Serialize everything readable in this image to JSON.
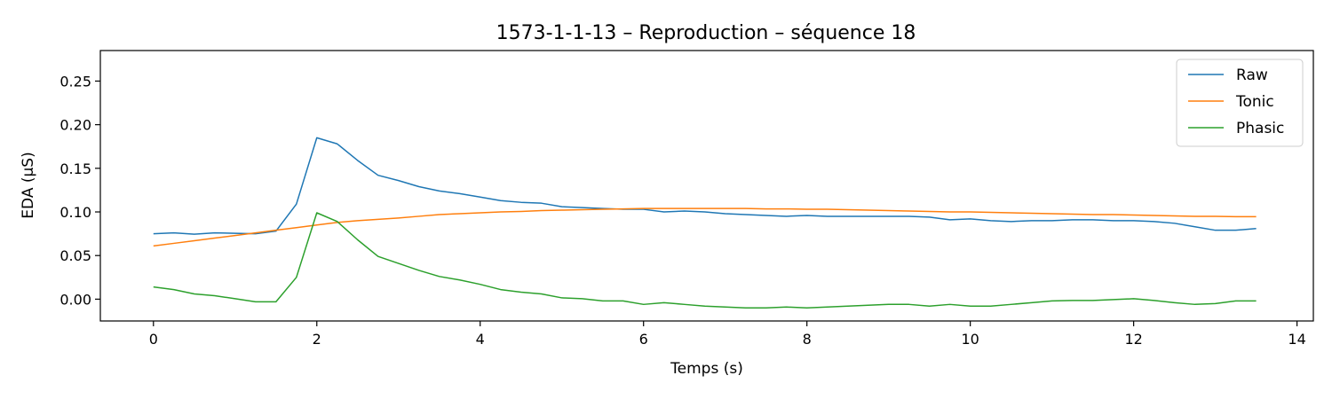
{
  "chart_data": {
    "type": "line",
    "title": "1573-1-1-13 – Reproduction – séquence 18",
    "xlabel": "Temps (s)",
    "ylabel": "EDA (µS)",
    "xlim": [
      -0.65,
      14.2
    ],
    "ylim": [
      -0.025,
      0.285
    ],
    "xticks": [
      0,
      2,
      4,
      6,
      8,
      10,
      12,
      14
    ],
    "xtick_labels": [
      "0",
      "2",
      "4",
      "6",
      "8",
      "10",
      "12",
      "14"
    ],
    "yticks": [
      0.0,
      0.05,
      0.1,
      0.15,
      0.2,
      0.25
    ],
    "ytick_labels": [
      "0.00",
      "0.05",
      "0.10",
      "0.15",
      "0.20",
      "0.25"
    ],
    "grid": false,
    "legend_position": "top-right",
    "x": [
      0,
      0.25,
      0.5,
      0.75,
      1.0,
      1.25,
      1.5,
      1.75,
      2.0,
      2.25,
      2.5,
      2.75,
      3.0,
      3.25,
      3.5,
      3.75,
      4.0,
      4.25,
      4.5,
      4.75,
      5.0,
      5.25,
      5.5,
      5.75,
      6.0,
      6.25,
      6.5,
      6.75,
      7.0,
      7.25,
      7.5,
      7.75,
      8.0,
      8.25,
      8.5,
      8.75,
      9.0,
      9.25,
      9.5,
      9.75,
      10.0,
      10.25,
      10.5,
      10.75,
      11.0,
      11.25,
      11.5,
      11.75,
      12.0,
      12.25,
      12.5,
      12.75,
      13.0,
      13.25,
      13.5
    ],
    "series": [
      {
        "name": "Raw",
        "color": "#1f77b4",
        "values": [
          0.075,
          0.076,
          0.0745,
          0.076,
          0.0755,
          0.075,
          0.078,
          0.109,
          0.185,
          0.178,
          0.159,
          0.142,
          0.136,
          0.129,
          0.124,
          0.121,
          0.117,
          0.113,
          0.111,
          0.11,
          0.106,
          0.105,
          0.104,
          0.103,
          0.103,
          0.1,
          0.101,
          0.1,
          0.098,
          0.097,
          0.096,
          0.095,
          0.096,
          0.095,
          0.095,
          0.095,
          0.095,
          0.095,
          0.094,
          0.091,
          0.092,
          0.09,
          0.089,
          0.09,
          0.09,
          0.091,
          0.091,
          0.09,
          0.09,
          0.089,
          0.087,
          0.083,
          0.079,
          0.079,
          0.081
        ]
      },
      {
        "name": "Tonic",
        "color": "#ff7f0e",
        "values": [
          0.061,
          0.064,
          0.067,
          0.07,
          0.073,
          0.076,
          0.079,
          0.082,
          0.085,
          0.088,
          0.09,
          0.0915,
          0.093,
          0.095,
          0.097,
          0.098,
          0.099,
          0.1,
          0.1005,
          0.1015,
          0.102,
          0.1025,
          0.103,
          0.1035,
          0.104,
          0.104,
          0.104,
          0.104,
          0.104,
          0.104,
          0.1035,
          0.1035,
          0.103,
          0.103,
          0.1025,
          0.102,
          0.1015,
          0.101,
          0.1005,
          0.1,
          0.1,
          0.0995,
          0.099,
          0.0985,
          0.098,
          0.0975,
          0.097,
          0.097,
          0.0965,
          0.096,
          0.0955,
          0.095,
          0.095,
          0.0945,
          0.0945
        ]
      },
      {
        "name": "Phasic",
        "color": "#2ca02c",
        "values": [
          0.014,
          0.011,
          0.006,
          0.004,
          0.0005,
          -0.003,
          -0.003,
          0.025,
          0.099,
          0.089,
          0.068,
          0.049,
          0.041,
          0.033,
          0.026,
          0.022,
          0.017,
          0.011,
          0.008,
          0.006,
          0.0015,
          0.0005,
          -0.002,
          -0.002,
          -0.006,
          -0.004,
          -0.006,
          -0.008,
          -0.009,
          -0.01,
          -0.01,
          -0.009,
          -0.01,
          -0.009,
          -0.008,
          -0.007,
          -0.006,
          -0.006,
          -0.008,
          -0.006,
          -0.008,
          -0.008,
          -0.006,
          -0.004,
          -0.002,
          -0.0015,
          -0.0015,
          -0.0005,
          0.0005,
          -0.0015,
          -0.004,
          -0.006,
          -0.005,
          -0.002,
          -0.002
        ]
      }
    ]
  }
}
